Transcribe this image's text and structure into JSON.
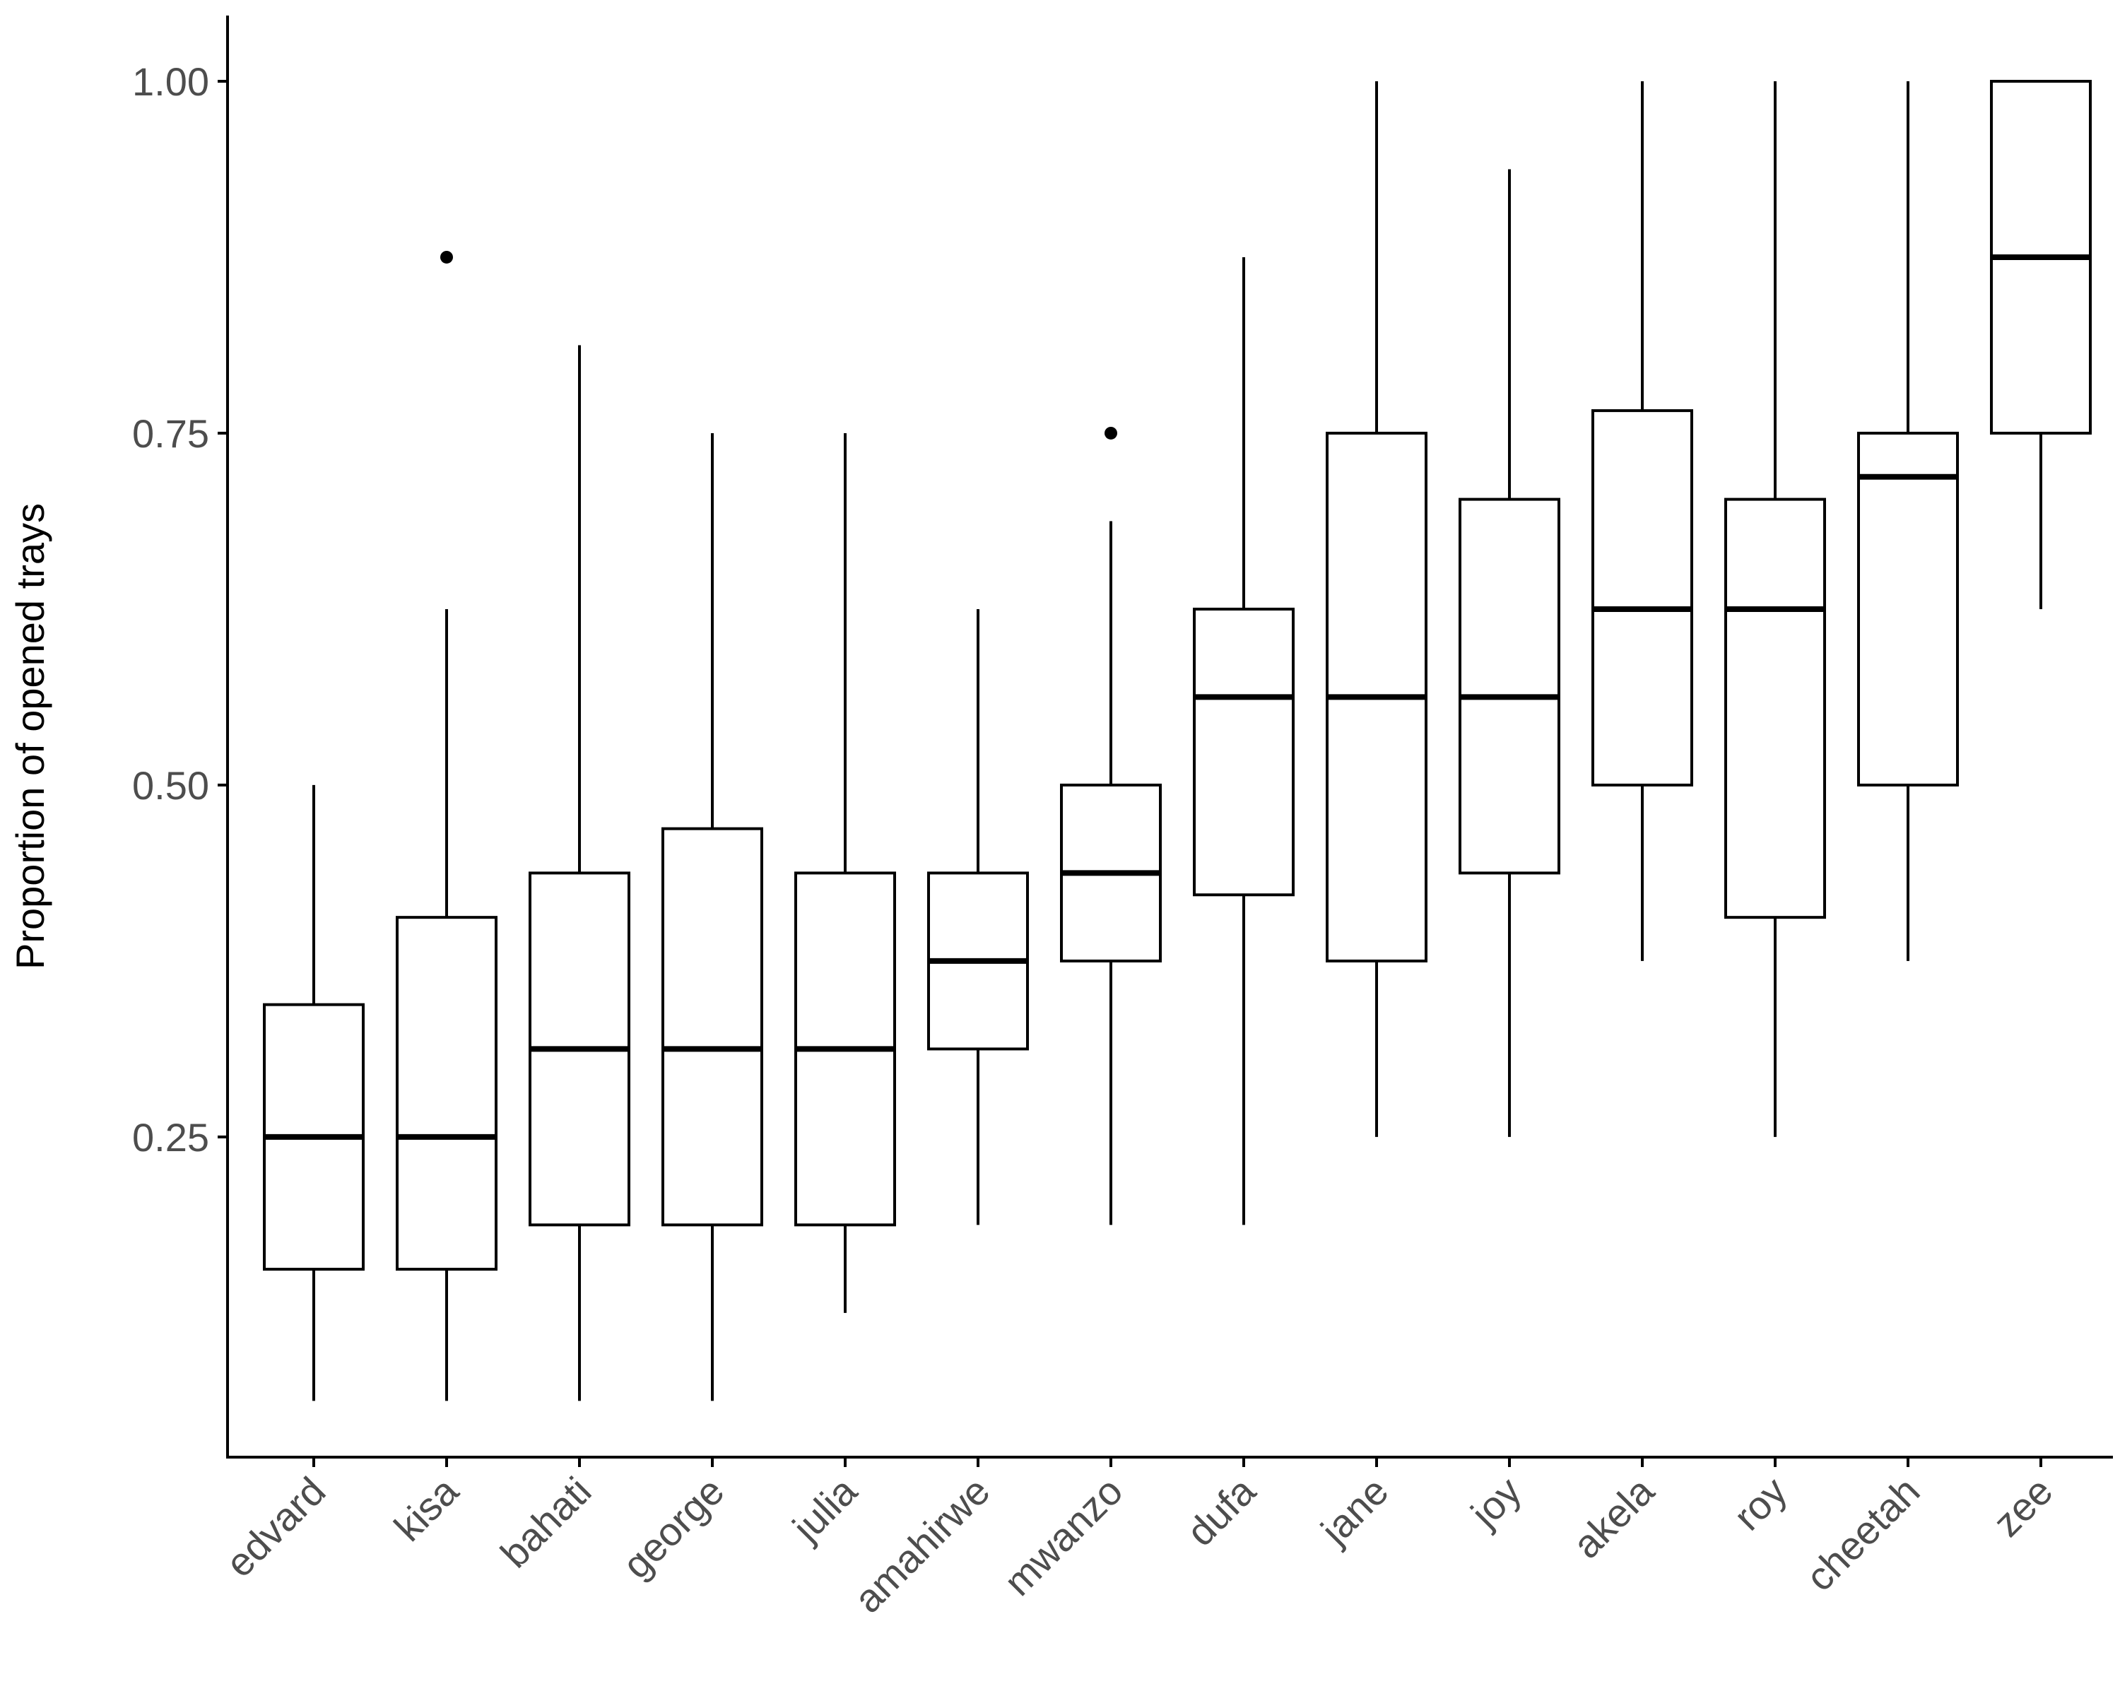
{
  "chart_data": {
    "type": "boxplot",
    "title": "",
    "xlabel": "",
    "ylabel": "Proportion of opened trays",
    "ylim": [
      0.0225,
      1.0467
    ],
    "y_ticks": [
      {
        "value": 0.25,
        "label": "0.25"
      },
      {
        "value": 0.5,
        "label": "0.50"
      },
      {
        "value": 0.75,
        "label": "0.75"
      },
      {
        "value": 1.0,
        "label": "1.00"
      }
    ],
    "grid": false,
    "legend": "none",
    "categories": [
      "edvard",
      "kisa",
      "bahati",
      "george",
      "julia",
      "amahirwe",
      "mwanzo",
      "dufa",
      "jane",
      "joy",
      "akela",
      "roy",
      "cheetah",
      "zee"
    ],
    "boxes": [
      {
        "name": "edvard",
        "whisker_low": 0.0625,
        "q1": 0.156,
        "median": 0.25,
        "q3": 0.344,
        "whisker_high": 0.5,
        "outliers": []
      },
      {
        "name": "kisa",
        "whisker_low": 0.0625,
        "q1": 0.156,
        "median": 0.25,
        "q3": 0.406,
        "whisker_high": 0.625,
        "outliers": [
          0.875
        ]
      },
      {
        "name": "bahati",
        "whisker_low": 0.0625,
        "q1": 0.1875,
        "median": 0.3125,
        "q3": 0.4375,
        "whisker_high": 0.8125,
        "outliers": []
      },
      {
        "name": "george",
        "whisker_low": 0.0625,
        "q1": 0.1875,
        "median": 0.3125,
        "q3": 0.469,
        "whisker_high": 0.75,
        "outliers": []
      },
      {
        "name": "julia",
        "whisker_low": 0.125,
        "q1": 0.1875,
        "median": 0.3125,
        "q3": 0.4375,
        "whisker_high": 0.75,
        "outliers": []
      },
      {
        "name": "amahirwe",
        "whisker_low": 0.1875,
        "q1": 0.3125,
        "median": 0.375,
        "q3": 0.4375,
        "whisker_high": 0.625,
        "outliers": []
      },
      {
        "name": "mwanzo",
        "whisker_low": 0.1875,
        "q1": 0.375,
        "median": 0.4375,
        "q3": 0.5,
        "whisker_high": 0.6875,
        "outliers": [
          0.75
        ]
      },
      {
        "name": "dufa",
        "whisker_low": 0.1875,
        "q1": 0.422,
        "median": 0.5625,
        "q3": 0.625,
        "whisker_high": 0.875,
        "outliers": []
      },
      {
        "name": "jane",
        "whisker_low": 0.25,
        "q1": 0.375,
        "median": 0.5625,
        "q3": 0.75,
        "whisker_high": 1.0,
        "outliers": []
      },
      {
        "name": "joy",
        "whisker_low": 0.25,
        "q1": 0.4375,
        "median": 0.5625,
        "q3": 0.703,
        "whisker_high": 0.9375,
        "outliers": []
      },
      {
        "name": "akela",
        "whisker_low": 0.375,
        "q1": 0.5,
        "median": 0.625,
        "q3": 0.766,
        "whisker_high": 1.0,
        "outliers": []
      },
      {
        "name": "roy",
        "whisker_low": 0.25,
        "q1": 0.406,
        "median": 0.625,
        "q3": 0.703,
        "whisker_high": 1.0,
        "outliers": []
      },
      {
        "name": "cheetah",
        "whisker_low": 0.375,
        "q1": 0.5,
        "median": 0.719,
        "q3": 0.75,
        "whisker_high": 1.0,
        "outliers": []
      },
      {
        "name": "zee",
        "whisker_low": 0.625,
        "q1": 0.75,
        "median": 0.875,
        "q3": 1.0,
        "whisker_high": 1.0,
        "outliers": []
      }
    ]
  }
}
